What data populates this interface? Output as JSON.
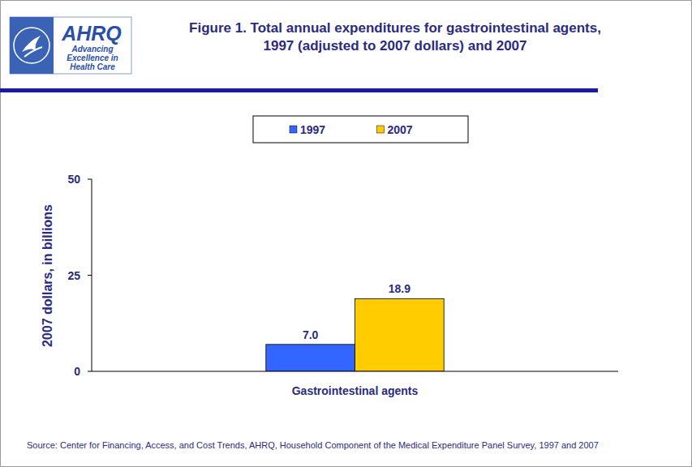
{
  "chart_data": {
    "type": "bar",
    "title": "Figure 1. Total annual expenditures for gastrointestinal agents, 1997 (adjusted to 2007 dollars) and 2007",
    "y_label": "2007 dollars, in billions",
    "source": "Source: Center for Financing, Access, and Cost Trends, AHRQ, Household Component of the Medical Expenditure Panel Survey, 1997 and 2007",
    "annotations": [
      "AHRQ",
      "Advancing",
      "Excellence in",
      "Health Care"
    ],
    "categories": [
      "Gastrointestinal agents"
    ],
    "series": [
      {
        "name": "1997",
        "color": "#3366ff",
        "values": [
          7.0
        ],
        "value_labels": [
          "7.0"
        ]
      },
      {
        "name": "2007",
        "color": "#ffcc00",
        "values": [
          18.9
        ],
        "value_labels": [
          "18.9"
        ]
      }
    ],
    "ylim": [
      0,
      50
    ],
    "yticks": [
      0,
      25,
      50
    ],
    "grid": false,
    "legend": "top",
    "data_labels": true
  }
}
